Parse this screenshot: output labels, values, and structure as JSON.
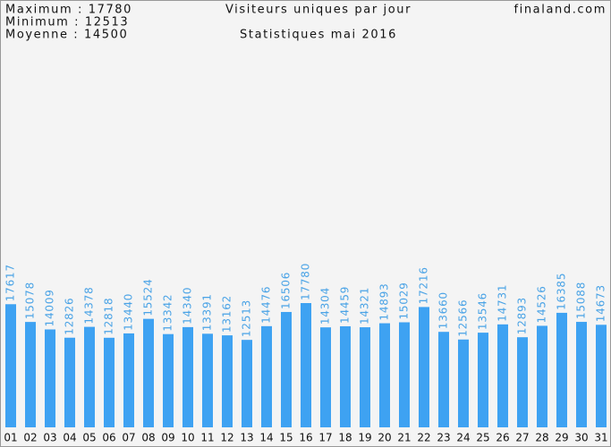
{
  "chart_data": {
    "type": "bar",
    "stats": [
      "Maximum : 17780",
      "Minimum : 12513",
      "Moyenne : 14500"
    ],
    "title": "Visiteurs uniques par jour",
    "site": "finaland.com",
    "subtitle": "Statistiques mai 2016",
    "categories": [
      "01",
      "02",
      "03",
      "04",
      "05",
      "06",
      "07",
      "08",
      "09",
      "10",
      "11",
      "12",
      "13",
      "14",
      "15",
      "16",
      "17",
      "18",
      "19",
      "20",
      "21",
      "22",
      "23",
      "24",
      "25",
      "26",
      "27",
      "28",
      "29",
      "30",
      "31"
    ],
    "values": [
      17617,
      15078,
      14009,
      12826,
      14378,
      12818,
      13440,
      15524,
      13342,
      14340,
      13391,
      13162,
      12513,
      14476,
      16506,
      17780,
      14304,
      14459,
      14321,
      14893,
      15029,
      17216,
      13660,
      12566,
      13546,
      14731,
      12893,
      14526,
      16385,
      15088,
      14673
    ],
    "color": "#3ea2f2",
    "label_color": "#4aa3e6"
  }
}
